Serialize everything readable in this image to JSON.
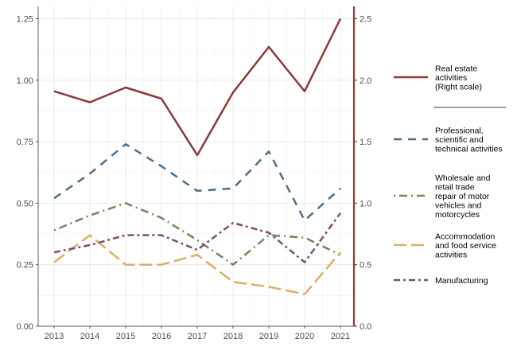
{
  "chart_data": {
    "type": "line",
    "categories": [
      "2013",
      "2014",
      "2015",
      "2016",
      "2017",
      "2018",
      "2019",
      "2020",
      "2021"
    ],
    "left_axis": {
      "ylim": [
        0,
        1.3
      ],
      "ticks": [
        0.0,
        0.25,
        0.5,
        0.75,
        1.0,
        1.25
      ],
      "tick_labels": [
        "0.00",
        "0.25",
        "0.50",
        "0.75",
        "1.00",
        "1.25"
      ]
    },
    "right_axis": {
      "ylim": [
        0,
        2.6
      ],
      "ticks": [
        0.0,
        0.5,
        1.0,
        1.5,
        2.0,
        2.5
      ],
      "tick_labels": [
        "0.0",
        "0.5",
        "1.0",
        "1.5",
        "2.0",
        "2.5"
      ],
      "color": "#8B3A3A"
    },
    "grid": true,
    "legend_position": "right",
    "series": [
      {
        "name": "Real estate activities (Right scale)",
        "legend_lines": [
          "Real estate",
          "activities",
          "(Right scale)"
        ],
        "axis": "right",
        "color": "#8B3A3A",
        "dash": "solid",
        "values": [
          1.91,
          1.82,
          1.94,
          1.85,
          1.39,
          1.9,
          2.27,
          1.91,
          2.5
        ]
      },
      {
        "name": "Professional, scientific and technical activities",
        "legend_lines": [
          "Professional,",
          "scientific and",
          "technical activities"
        ],
        "axis": "left",
        "color": "#4F6D8A",
        "dash": "dashed",
        "values": [
          0.52,
          0.62,
          0.74,
          0.65,
          0.55,
          0.56,
          0.71,
          0.43,
          0.56
        ]
      },
      {
        "name": "Wholesale and retail trade repair of motor vehicles and motorcycles",
        "legend_lines": [
          "Wholesale and",
          "retail trade",
          "repair of motor",
          "vehicles and",
          "motorcycles"
        ],
        "axis": "left",
        "color": "#6B8A5A",
        "dash": "dotdash",
        "values": [
          0.39,
          0.45,
          0.5,
          0.44,
          0.35,
          0.25,
          0.37,
          0.36,
          0.29
        ]
      },
      {
        "name": "Accommodation and food service activities",
        "legend_lines": [
          "Accommodation",
          "and food service",
          "activities"
        ],
        "axis": "left",
        "color": "#D9B06A",
        "dash": "longdash",
        "values": [
          0.26,
          0.37,
          0.25,
          0.25,
          0.29,
          0.18,
          0.16,
          0.13,
          0.3
        ]
      },
      {
        "name": "Manufacturing",
        "legend_lines": [
          "Manufacturing"
        ],
        "axis": "left",
        "color": "#7A5070",
        "dash": "twodash",
        "values": [
          0.3,
          0.33,
          0.37,
          0.37,
          0.31,
          0.42,
          0.38,
          0.26,
          0.46
        ]
      }
    ]
  }
}
